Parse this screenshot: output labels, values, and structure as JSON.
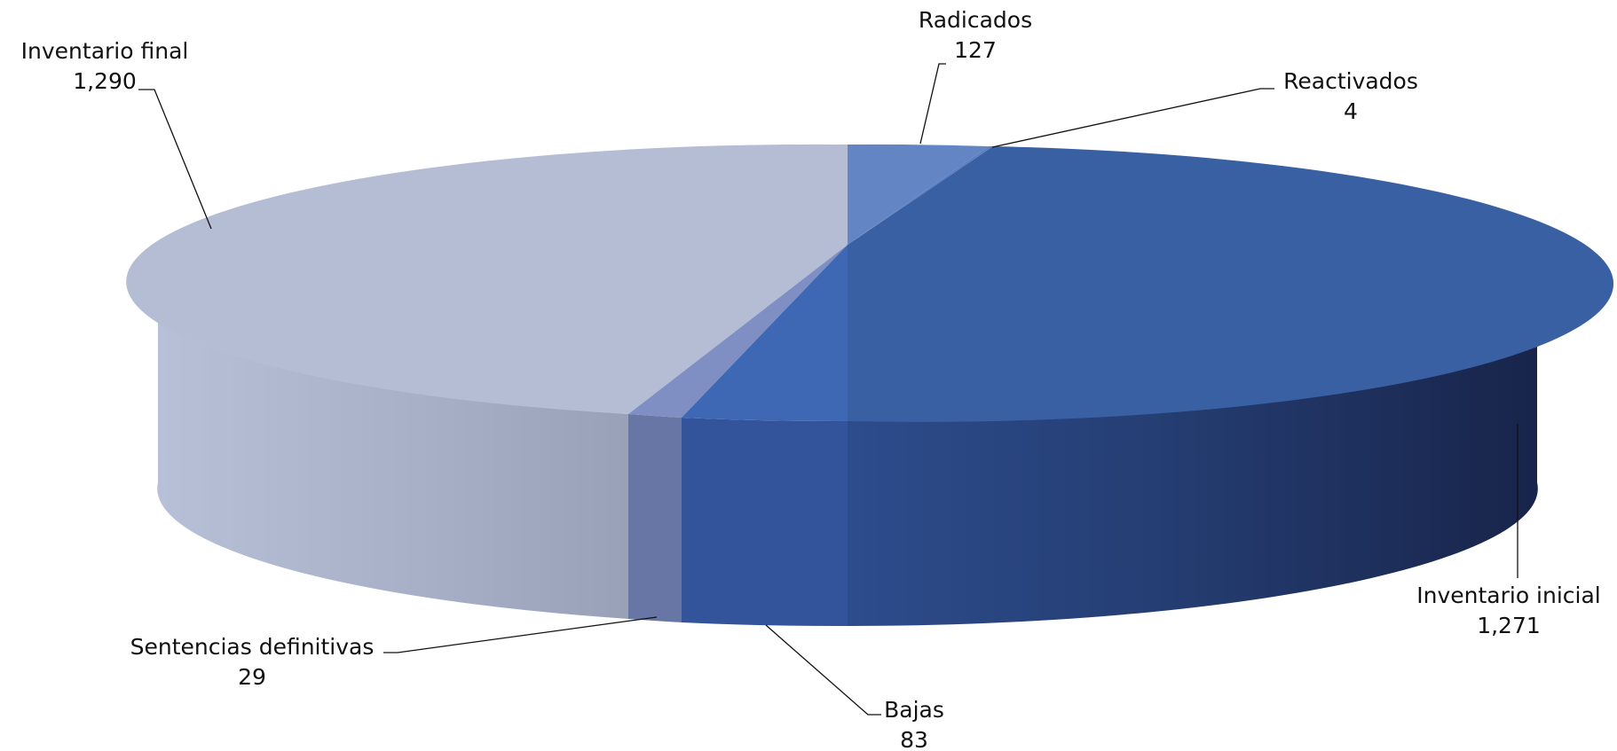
{
  "chart_data": {
    "type": "pie",
    "style": "3d",
    "title": "",
    "slices": [
      {
        "label": "Radicados",
        "value": 127,
        "value_text": "127",
        "color": "#6385C4"
      },
      {
        "label": "Reactivados",
        "value": 4,
        "value_text": "4",
        "color": "#5C7FC2"
      },
      {
        "label": "Inventario inicial",
        "value": 1271,
        "value_text": "1,271",
        "color": "#3A60A4"
      },
      {
        "label": "Bajas",
        "value": 83,
        "value_text": "83",
        "color": "#3E68B4"
      },
      {
        "label": "Sentencias definitivas",
        "value": 29,
        "value_text": "29",
        "color": "#7F8EC3"
      },
      {
        "label": "Inventario final",
        "value": 1290,
        "value_text": "1,290",
        "color": "#B5BDD4"
      }
    ],
    "legend": "none",
    "data_labels": "outside with leader lines"
  }
}
